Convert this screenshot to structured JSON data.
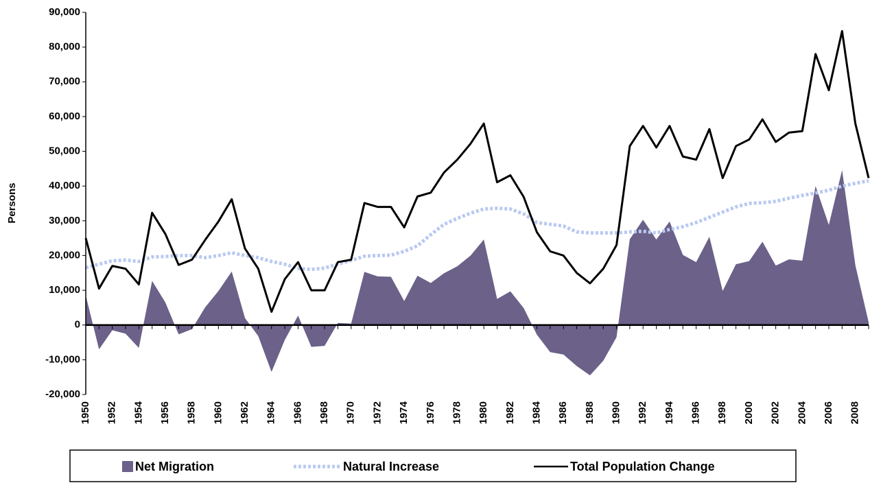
{
  "chart_data": {
    "type": "area-line",
    "y_label": "Persons",
    "categories": [
      "1950",
      null,
      "1952",
      null,
      "1954",
      null,
      "1956",
      null,
      "1958",
      null,
      "1960",
      null,
      "1962",
      null,
      "1964",
      null,
      "1966",
      null,
      "1968",
      null,
      "1970",
      null,
      "1972",
      null,
      "1974",
      null,
      "1976",
      null,
      "1978",
      null,
      "1980",
      null,
      "1982",
      null,
      "1984",
      null,
      "1986",
      null,
      "1988",
      null,
      "1990",
      null,
      "1992",
      null,
      "1994",
      null,
      "1996",
      null,
      "1998",
      null,
      "2000",
      null,
      "2002",
      null,
      "2004",
      null,
      "2006",
      null,
      "2008",
      null
    ],
    "series": [
      {
        "name": "Net Migration",
        "kind": "area",
        "color": "#6b6189",
        "values": [
          8500,
          -7000,
          -1500,
          -2500,
          -6600,
          12700,
          6500,
          -2700,
          -1200,
          5100,
          9800,
          15400,
          2000,
          -3200,
          -13500,
          -4300,
          2700,
          -6300,
          -6000,
          600,
          400,
          15300,
          14000,
          13900,
          6900,
          14200,
          12100,
          14900,
          16900,
          20000,
          24600,
          7500,
          9700,
          4900,
          -2800,
          -7800,
          -8500,
          -11800,
          -14500,
          -10300,
          -3500,
          24700,
          30300,
          24600,
          29800,
          20200,
          18100,
          25400,
          9800,
          17500,
          18400,
          24000,
          17100,
          18900,
          18500,
          40000,
          28800,
          44600,
          17200,
          800
        ]
      },
      {
        "name": "Natural Increase",
        "kind": "dotted-line",
        "color": "#b9c9f1",
        "values": [
          16500,
          17500,
          18500,
          18700,
          18300,
          19600,
          19700,
          20000,
          20000,
          19400,
          20000,
          20800,
          20000,
          19400,
          18300,
          17500,
          16300,
          16000,
          16400,
          17500,
          18600,
          19800,
          20000,
          20100,
          21200,
          22800,
          26000,
          29000,
          30700,
          32200,
          33400,
          33600,
          33400,
          32000,
          29500,
          29000,
          28500,
          26800,
          26500,
          26500,
          26500,
          26800,
          27000,
          26500,
          27500,
          28300,
          29500,
          31000,
          32500,
          34000,
          35000,
          35200,
          35600,
          36500,
          37300,
          38000,
          38800,
          40000,
          40800,
          41500
        ]
      },
      {
        "name": "Total Population Change",
        "kind": "line",
        "color": "#000000",
        "values": [
          25000,
          10500,
          17000,
          16200,
          11700,
          32300,
          26200,
          17300,
          18800,
          24500,
          29800,
          36200,
          22000,
          16200,
          3800,
          13200,
          18100,
          10000,
          10000,
          18100,
          18800,
          35100,
          34000,
          34000,
          28100,
          37000,
          38100,
          43900,
          47600,
          52200,
          58000,
          41100,
          43100,
          36900,
          26700,
          21200,
          20000,
          15000,
          12000,
          16200,
          23000,
          51500,
          57300,
          51100,
          57300,
          48500,
          47600,
          56400,
          42300,
          51500,
          53400,
          59200,
          52700,
          55400,
          55800,
          78000,
          67600,
          84600,
          58000,
          42300
        ]
      }
    ],
    "ylim": [
      -20000,
      90000
    ],
    "yticks": [
      {
        "value": -20000,
        "label": "-20,000"
      },
      {
        "value": -10000,
        "label": "-10,000"
      },
      0,
      {
        "value": 10000,
        "label": "10,000"
      },
      {
        "value": 20000,
        "label": "20,000"
      },
      {
        "value": 30000,
        "label": "30,000"
      },
      {
        "value": 40000,
        "label": "40,000"
      },
      {
        "value": 50000,
        "label": "50,000"
      },
      {
        "value": 60000,
        "label": "60,000"
      },
      {
        "value": 70000,
        "label": "70,000"
      },
      {
        "value": 80000,
        "label": "80,000"
      },
      {
        "value": 90000,
        "label": "90,000"
      }
    ],
    "legend": "bottom"
  }
}
